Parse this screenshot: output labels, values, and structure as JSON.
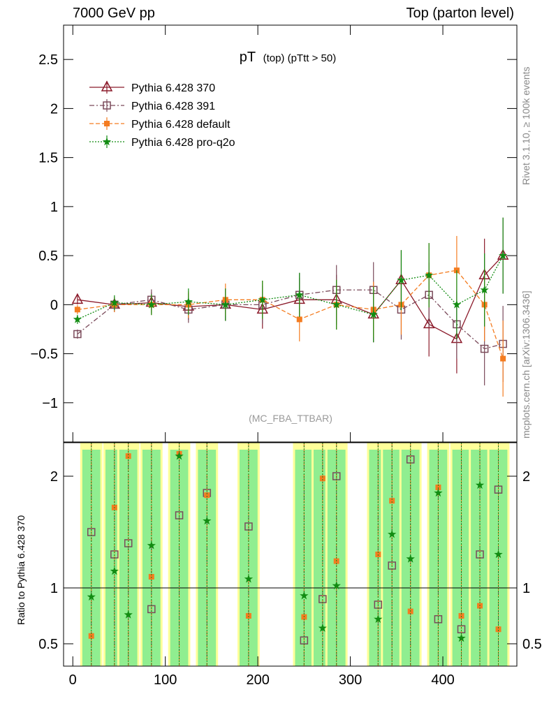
{
  "header": {
    "left": "7000 GeV pp",
    "right": "Top (parton level)"
  },
  "side_labels": {
    "rivet": "Rivet 3.1.10, ≥ 100k events",
    "mcplots": "mcplots.cern.ch [arXiv:1306.3436]"
  },
  "plot_title": {
    "main": "pT",
    "sub": "(top) (pTtt > 50)"
  },
  "analysis_tag": "(MC_FBA_TTBAR)",
  "ratio_ylabel": "Ratio to Pythia 6.428 370",
  "colors": {
    "series_370": "#8b1a2a",
    "series_391": "#7a4a5a",
    "series_default": "#f47c20",
    "series_proq2o": "#128c12",
    "band_yellow": "#ffff99",
    "band_green": "#90ee90"
  },
  "chart_data": [
    {
      "type": "scatter",
      "title": "pT (top) (pTtt > 50)",
      "xlabel": "",
      "ylabel": "",
      "xlim": [
        -10,
        480
      ],
      "ylim": [
        -1.4,
        2.85
      ],
      "x_ticks": [
        0,
        100,
        200,
        300,
        400
      ],
      "y_ticks": [
        -1,
        -0.5,
        0,
        0.5,
        1,
        1.5,
        2,
        2.5
      ],
      "y_tick_labels": [
        "−1",
        "−0.5",
        "0",
        "0.5",
        "1",
        "1.5",
        "2",
        "2.5"
      ],
      "legend": "top-left",
      "x": [
        5,
        45,
        85,
        125,
        165,
        205,
        245,
        285,
        325,
        355,
        385,
        415,
        445,
        465
      ],
      "series": [
        {
          "name": "Pythia 6.428 370",
          "marker": "triangle",
          "values": [
            0.05,
            0.0,
            0.02,
            -0.02,
            0.0,
            -0.05,
            0.05,
            0.05,
            -0.1,
            0.25,
            -0.2,
            -0.35,
            0.3,
            0.5
          ]
        },
        {
          "name": "Pythia 6.428 391",
          "marker": "open-square",
          "values": [
            -0.3,
            0.0,
            0.05,
            -0.05,
            0.0,
            0.0,
            0.1,
            0.15,
            0.15,
            -0.05,
            0.1,
            -0.2,
            -0.45,
            -0.4
          ]
        },
        {
          "name": "Pythia 6.428 default",
          "marker": "filled-square",
          "values": [
            -0.05,
            0.0,
            0.0,
            0.0,
            0.05,
            0.05,
            -0.15,
            0.0,
            -0.05,
            0.0,
            0.3,
            0.35,
            0.0,
            -0.55
          ]
        },
        {
          "name": "Pythia 6.428 pro-q2o",
          "marker": "star",
          "values": [
            -0.15,
            0.02,
            0.0,
            0.03,
            0.0,
            0.05,
            0.1,
            0.0,
            -0.1,
            0.25,
            0.3,
            0.0,
            0.15,
            0.5
          ]
        }
      ]
    },
    {
      "type": "scatter",
      "title": "",
      "xlabel": "",
      "ylabel": "Ratio to Pythia 6.428 370",
      "xlim": [
        -10,
        480
      ],
      "ylim": [
        0.3,
        2.3
      ],
      "x_ticks": [
        0,
        100,
        200,
        300,
        400
      ],
      "y_ticks": [
        0.5,
        1,
        2
      ],
      "y_tick_labels": [
        "0.5",
        "1",
        "2"
      ],
      "reference_line": 1,
      "x": [
        20,
        45,
        60,
        85,
        115,
        145,
        190,
        250,
        270,
        285,
        330,
        345,
        365,
        395,
        420,
        440,
        460
      ],
      "series": [
        {
          "name": "Pythia 6.428 391",
          "marker": "open-square",
          "values": [
            1.5,
            1.3,
            1.4,
            0.81,
            1.65,
            1.85,
            1.55,
            0.53,
            0.9,
            2.0,
            0.85,
            1.2,
            2.15,
            0.72,
            0.63,
            1.3,
            1.88
          ]
        },
        {
          "name": "Pythia 6.428 default",
          "marker": "filled-square",
          "values": [
            0.57,
            1.72,
            2.18,
            1.1,
            2.2,
            1.83,
            0.75,
            0.74,
            1.98,
            1.24,
            1.3,
            1.78,
            0.79,
            1.9,
            0.75,
            0.84,
            0.63
          ]
        },
        {
          "name": "Pythia 6.428 pro-q2o",
          "marker": "star",
          "values": [
            0.92,
            1.15,
            0.76,
            1.38,
            2.18,
            1.6,
            1.08,
            0.93,
            0.64,
            1.02,
            0.72,
            1.48,
            1.26,
            1.85,
            0.55,
            1.92,
            1.3
          ]
        }
      ]
    }
  ]
}
